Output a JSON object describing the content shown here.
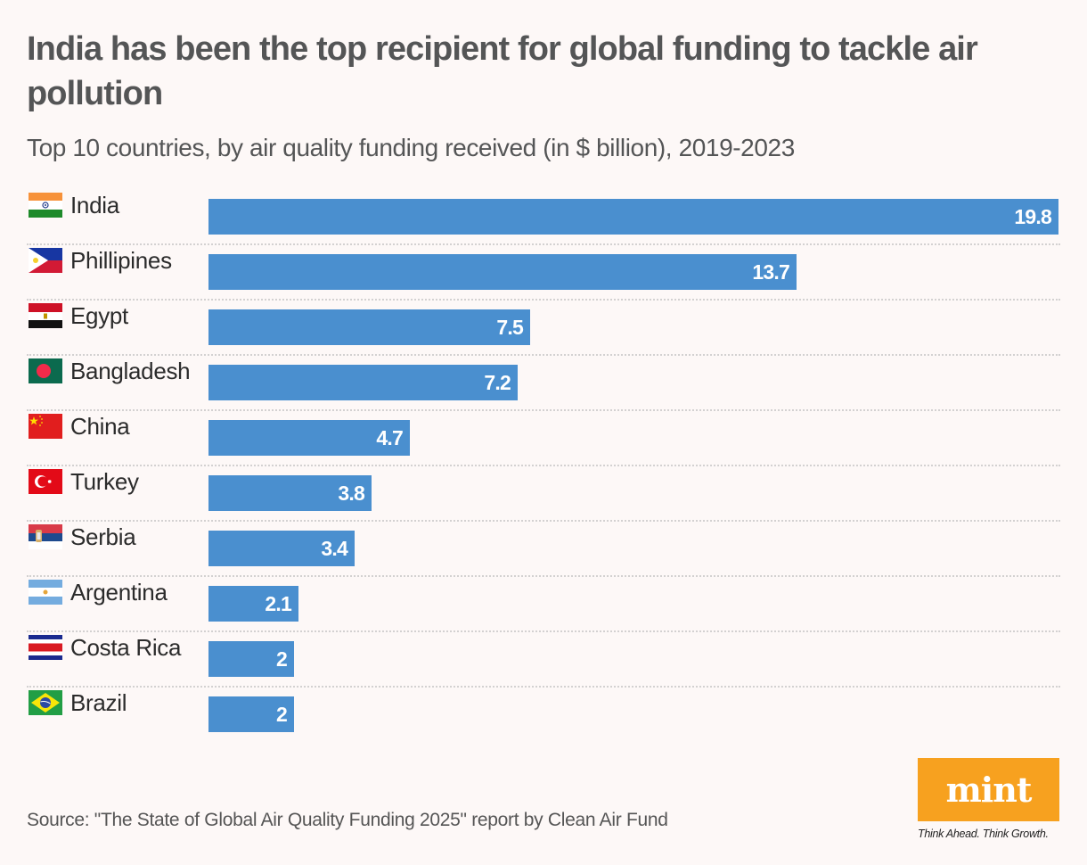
{
  "header": {
    "title": "India has been the top recipient for global funding to tackle air pollution",
    "subtitle": "Top 10 countries, by air quality funding received (in $ billion), 2019-2023"
  },
  "footer": {
    "source": "Source: \"The State of Global Air Quality Funding 2025\" report by Clean Air Fund",
    "logo": "mint",
    "tagline": "Think Ahead. Think Growth."
  },
  "colors": {
    "bar": "#4a8fcf",
    "background": "#fdf8f7",
    "logo": "#f7a11f"
  },
  "chart_data": {
    "type": "bar",
    "orientation": "horizontal",
    "title": "India has been the top recipient for global funding to tackle air pollution",
    "subtitle": "Top 10 countries, by air quality funding received (in $ billion), 2019-2023",
    "xlabel": "",
    "ylabel": "",
    "unit": "$ billion",
    "xlim": [
      0,
      19.8
    ],
    "grid": false,
    "categories": [
      "India",
      "Phillipines",
      "Egypt",
      "Bangladesh",
      "China",
      "Turkey",
      "Serbia",
      "Argentina",
      "Costa Rica",
      "Brazil"
    ],
    "values": [
      19.8,
      13.7,
      7.5,
      7.2,
      4.7,
      3.8,
      3.4,
      2.1,
      2,
      2
    ],
    "data_labels": [
      "19.8",
      "13.7",
      "7.5",
      "7.2",
      "4.7",
      "3.8",
      "3.4",
      "2.1",
      "2",
      "2"
    ],
    "flags": [
      "india-flag-icon",
      "philippines-flag-icon",
      "egypt-flag-icon",
      "bangladesh-flag-icon",
      "china-flag-icon",
      "turkey-flag-icon",
      "serbia-flag-icon",
      "argentina-flag-icon",
      "costa-rica-flag-icon",
      "brazil-flag-icon"
    ]
  }
}
